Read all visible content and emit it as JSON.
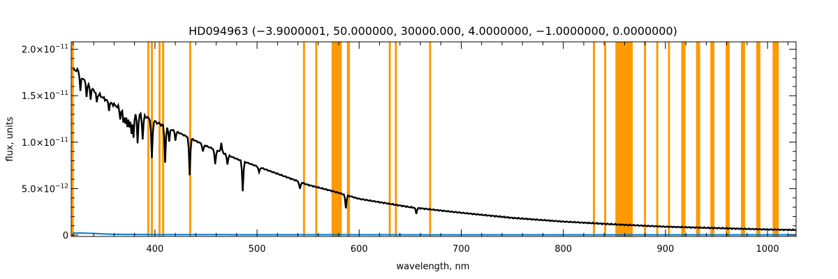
{
  "chart_data": {
    "type": "line",
    "title": "HD094963   (−3.9000001, 50.000000, 30000.000, 4.0000000, −1.0000000, 0.0000000)",
    "xlabel": "wavelength, nm",
    "ylabel": "flux, units",
    "xlim": [
      318,
      1028
    ],
    "ylim": [
      -1.5e-13,
      2.08e-11
    ],
    "x_ticks": [
      {
        "value": 400,
        "label": "400"
      },
      {
        "value": 500,
        "label": "500"
      },
      {
        "value": 600,
        "label": "600"
      },
      {
        "value": 700,
        "label": "700"
      },
      {
        "value": 800,
        "label": "800"
      },
      {
        "value": 900,
        "label": "900"
      },
      {
        "value": 1000,
        "label": "1000"
      }
    ],
    "y_ticks": [
      {
        "value": 0,
        "mant": "0",
        "exp": ""
      },
      {
        "value": 5e-12,
        "mant": "5.0×10",
        "exp": "−12"
      },
      {
        "value": 1e-11,
        "mant": "1.0×10",
        "exp": "−11"
      },
      {
        "value": 1.5e-11,
        "mant": "1.5×10",
        "exp": "−11"
      },
      {
        "value": 2e-11,
        "mant": "2.0×10",
        "exp": "−11"
      }
    ],
    "grid": false,
    "masked_bands_nm": [
      [
        318.5,
        320.5
      ],
      [
        392.5,
        394.5
      ],
      [
        396,
        398
      ],
      [
        403.5,
        405.5
      ],
      [
        407,
        409
      ],
      [
        433.5,
        435.5
      ],
      [
        545,
        547
      ],
      [
        557,
        559
      ],
      [
        573,
        583
      ],
      [
        588,
        591
      ],
      [
        629,
        631
      ],
      [
        635,
        637
      ],
      [
        668.5,
        670.5
      ],
      [
        829,
        831
      ],
      [
        840,
        842
      ],
      [
        851,
        868
      ],
      [
        879,
        881
      ],
      [
        891,
        893
      ],
      [
        902.5,
        904.5
      ],
      [
        915.5,
        919.5
      ],
      [
        930,
        934
      ],
      [
        944,
        948
      ],
      [
        959,
        963
      ],
      [
        974,
        978
      ],
      [
        989,
        993
      ],
      [
        1005,
        1011
      ]
    ],
    "series": [
      {
        "color": "#000000",
        "x": [
          320,
          325,
          330,
          335,
          340,
          350,
          360,
          370,
          380,
          390,
          400,
          420,
          450,
          480,
          500,
          550,
          575,
          600,
          650,
          700,
          750,
          800,
          850,
          870,
          900,
          950,
          1000,
          1028
        ],
        "y": [
          1.78e-11,
          1.77e-11,
          1.68e-11,
          1.62e-11,
          1.56e-11,
          1.47e-11,
          1.4e-11,
          1.35e-11,
          1.32e-11,
          1.28e-11,
          1.22e-11,
          1.12e-11,
          9.6e-12,
          8.2e-12,
          7.4e-12,
          5.4e-12,
          4.7e-12,
          3.9e-12,
          3e-12,
          2.4e-12,
          1.85e-12,
          1.45e-12,
          1.15e-12,
          1.05e-12,
          9e-13,
          7.5e-13,
          6e-13,
          5.5e-13
        ],
        "absorption_lines": [
          {
            "x": 327,
            "depth": 1.8e-12
          },
          {
            "x": 333,
            "depth": 1.4e-12
          },
          {
            "x": 337,
            "depth": 1.2e-12
          },
          {
            "x": 343,
            "depth": 1e-12
          },
          {
            "x": 355,
            "depth": 8e-13
          },
          {
            "x": 366,
            "depth": 1.2e-12
          },
          {
            "x": 369,
            "depth": 1.3e-12
          },
          {
            "x": 371,
            "depth": 1.5e-12
          },
          {
            "x": 373,
            "depth": 1.6e-12
          },
          {
            "x": 375,
            "depth": 1.8e-12
          },
          {
            "x": 377,
            "depth": 2.2e-12
          },
          {
            "x": 379,
            "depth": 2.8e-12
          },
          {
            "x": 383,
            "depth": 3.2e-12
          },
          {
            "x": 388,
            "depth": 2.5e-12
          },
          {
            "x": 397,
            "depth": 4.2e-12
          },
          {
            "x": 410,
            "depth": 3.8e-12
          },
          {
            "x": 414,
            "depth": 1.4e-12
          },
          {
            "x": 420,
            "depth": 1e-12
          },
          {
            "x": 434,
            "depth": 4e-12
          },
          {
            "x": 447,
            "depth": 8e-13
          },
          {
            "x": 459,
            "depth": 1.6e-12
          },
          {
            "x": 471,
            "depth": 1e-12
          },
          {
            "x": 486,
            "depth": 3.2e-12
          },
          {
            "x": 502,
            "depth": 6e-13
          },
          {
            "x": 542,
            "depth": 8e-13
          },
          {
            "x": 587,
            "depth": 1.4e-12
          },
          {
            "x": 656,
            "depth": 6e-13
          }
        ],
        "emission_spikes": [
          {
            "x": 465,
            "height": 1e-12
          }
        ]
      },
      {
        "color": "#0077cc",
        "x": [
          320,
          330,
          340,
          350,
          360,
          380,
          400,
          500,
          600,
          700,
          800,
          900,
          1000,
          1028
        ],
        "y": [
          2.2e-13,
          2.1e-13,
          1.8e-13,
          1.2e-13,
          8e-14,
          6e-14,
          5e-14,
          4e-14,
          3.5e-14,
          3e-14,
          3e-14,
          3e-14,
          3e-14,
          3e-14
        ]
      }
    ]
  }
}
